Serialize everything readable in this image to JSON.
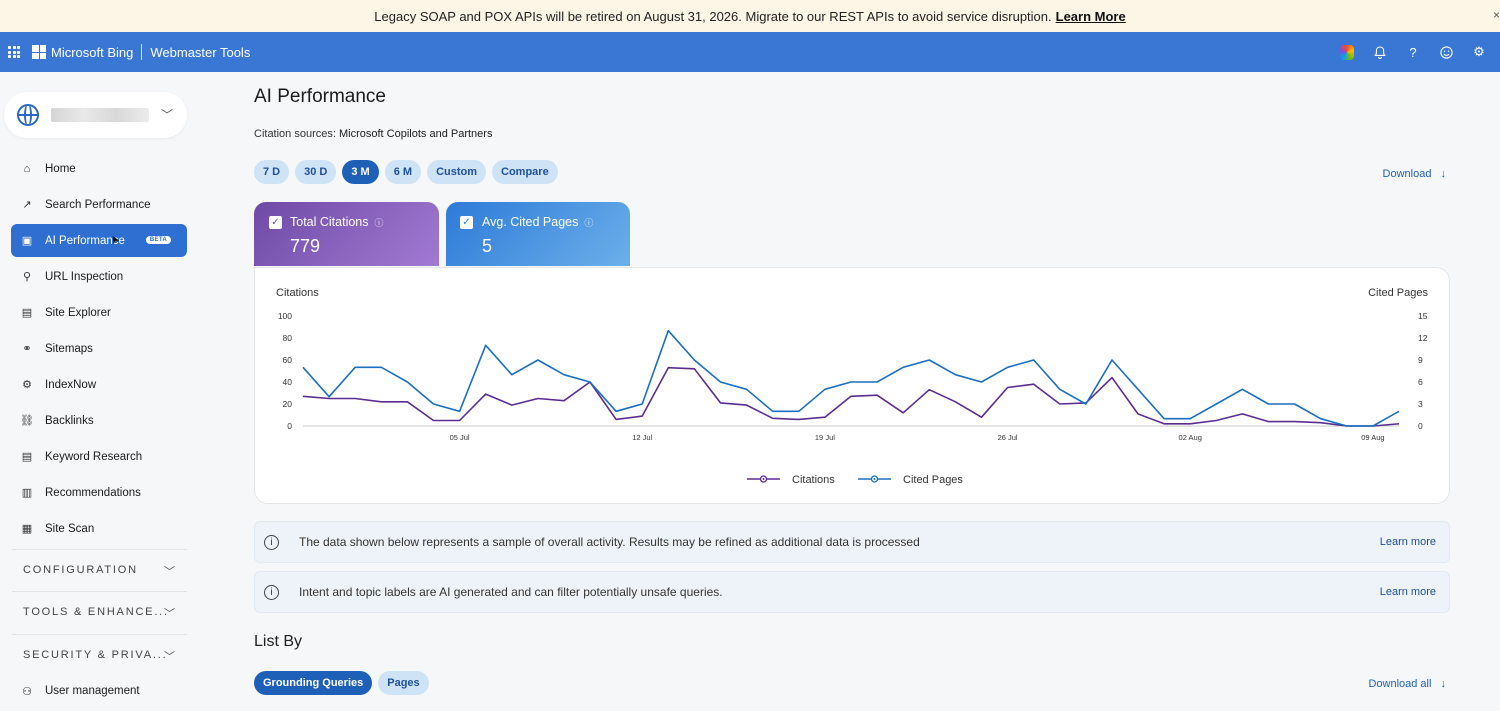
{
  "banner": {
    "message": "Legacy SOAP and POX APIs will be retired on August 31, 2026. Migrate to our REST APIs to avoid service disruption.",
    "link": "Learn More",
    "close": "×"
  },
  "header": {
    "brand": "Microsoft Bing",
    "product": "Webmaster Tools",
    "icons": [
      "copilot-icon",
      "bell-icon",
      "help-icon",
      "feedback-smiley-icon",
      "gear-icon"
    ]
  },
  "sidebar": {
    "items": [
      {
        "label": "Home",
        "icon": "home-icon",
        "glyph": "⌂"
      },
      {
        "label": "Search Performance",
        "icon": "trend-icon",
        "glyph": "↗"
      },
      {
        "label": "AI Performance",
        "icon": "ai-performance-icon",
        "glyph": "▣",
        "active": true,
        "badge": "BETA"
      },
      {
        "label": "URL Inspection",
        "icon": "search-icon",
        "glyph": "⚲"
      },
      {
        "label": "Site Explorer",
        "icon": "document-icon",
        "glyph": "▤"
      },
      {
        "label": "Sitemaps",
        "icon": "sitemap-icon",
        "glyph": "⚭"
      },
      {
        "label": "IndexNow",
        "icon": "settings-cog-icon",
        "glyph": "⚙"
      },
      {
        "label": "Backlinks",
        "icon": "link-icon",
        "glyph": "⛓"
      },
      {
        "label": "Keyword Research",
        "icon": "document-icon",
        "glyph": "▤"
      },
      {
        "label": "Recommendations",
        "icon": "clipboard-icon",
        "glyph": "▥"
      },
      {
        "label": "Site Scan",
        "icon": "scan-icon",
        "glyph": "▦"
      }
    ],
    "sections": [
      "CONFIGURATION",
      "TOOLS & ENHANCE...",
      "SECURITY & PRIVA..."
    ],
    "user_management": "User management"
  },
  "main": {
    "title": "AI Performance",
    "citation_prefix": "Citation sources:",
    "citation_value": "Microsoft Copilots and Partners",
    "ranges": [
      "7 D",
      "30 D",
      "3 M",
      "6 M",
      "Custom",
      "Compare"
    ],
    "active_range": "3 M",
    "download": "Download",
    "kpis": [
      {
        "label": "Total Citations",
        "value": "779"
      },
      {
        "label": "Avg. Cited Pages",
        "value": "5"
      }
    ],
    "info_cards": [
      {
        "text": "The data shown below represents a sample of overall activity. Results may be refined as additional data is processed",
        "link": "Learn more"
      },
      {
        "text": "Intent and topic labels are AI generated and can filter potentially unsafe queries.",
        "link": "Learn more"
      }
    ],
    "list_by": "List By",
    "list_tabs": [
      "Grounding Queries",
      "Pages"
    ],
    "download_all": "Download all"
  },
  "colors": {
    "citations": "#5b2d91",
    "cited_pages": "#1b6fc0",
    "accent": "#2f6fd1"
  },
  "chart_data": {
    "type": "line",
    "ylabel": "Citations",
    "y2label": "Cited Pages",
    "ylim": [
      0,
      100
    ],
    "y2lim": [
      0,
      15
    ],
    "yticks": [
      0,
      20,
      40,
      60,
      80,
      100
    ],
    "y2ticks": [
      0,
      3,
      6,
      9,
      12,
      15
    ],
    "x_tick_labels": [
      "05 Jul",
      "12 Jul",
      "19 Jul",
      "26 Jul",
      "02 Aug",
      "09 Aug"
    ],
    "x_tick_indices": [
      6,
      13,
      20,
      27,
      34,
      41
    ],
    "series": [
      {
        "name": "Citations",
        "axis": "left",
        "values": [
          27,
          25,
          25,
          22,
          22,
          5,
          5,
          29,
          19,
          25,
          23,
          40,
          6,
          9,
          53,
          52,
          21,
          19,
          7,
          6,
          8,
          27,
          28,
          12,
          33,
          22,
          8,
          35,
          38,
          20,
          21,
          44,
          11,
          2,
          2,
          5,
          11,
          4,
          4,
          3,
          0,
          0,
          2
        ]
      },
      {
        "name": "Cited Pages",
        "axis": "right",
        "values": [
          8,
          4,
          8,
          8,
          6,
          3,
          2,
          11,
          7,
          9,
          7,
          6,
          2,
          3,
          13,
          9,
          6,
          5,
          2,
          2,
          5,
          6,
          6,
          8,
          9,
          7,
          6,
          8,
          9,
          5,
          3,
          9,
          5,
          1,
          1,
          3,
          5,
          3,
          3,
          1,
          0,
          0,
          2
        ]
      }
    ],
    "legend": "bottom-center"
  }
}
